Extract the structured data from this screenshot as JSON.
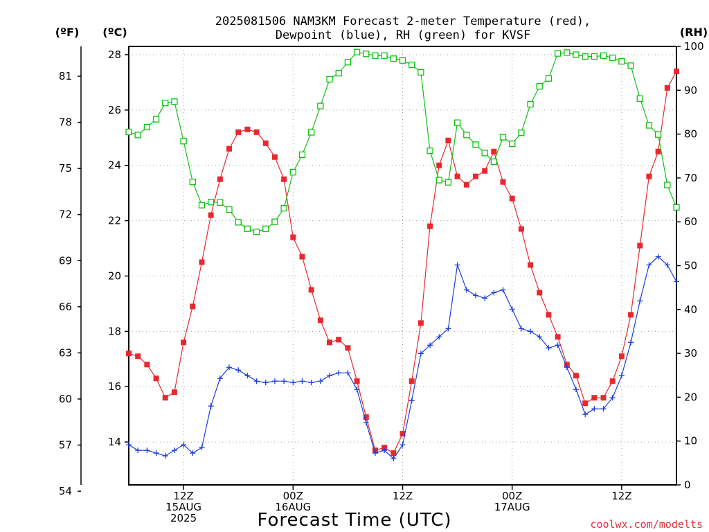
{
  "title_line1": "2025081506 NAM3KM Forecast 2-meter Temperature (red),",
  "title_line2": "Dewpoint (blue), RH (green) for KVSF",
  "unit_f": "(ºF)",
  "unit_c": "(ºC)",
  "unit_rh": "(RH)",
  "xlabel": "Forecast Time (UTC)",
  "credit": "coolwx.com/modelts",
  "colors": {
    "temperature": "#e8282f",
    "dewpoint": "#1a3de0",
    "rh": "#10c010"
  },
  "chart_data": {
    "type": "line",
    "title": "2025081506 NAM3KM Forecast 2-meter Temperature (red), Dewpoint (blue), RH (green) for KVSF",
    "xlabel": "Forecast Time (UTC)",
    "x_start_hour": 6,
    "xlim_hours": [
      6,
      66
    ],
    "x_tick_hours": [
      12,
      24,
      36,
      48,
      60
    ],
    "x_ticks": [
      [
        "12Z",
        "15AUG",
        "2025"
      ],
      [
        "00Z",
        "16AUG"
      ],
      [
        "12Z"
      ],
      [
        "00Z",
        "17AUG"
      ],
      [
        "12Z"
      ]
    ],
    "ylim_c": [
      12.45,
      28.3
    ],
    "yticks_c": [
      14,
      16,
      18,
      20,
      22,
      24,
      26,
      28
    ],
    "yticks_f": [
      54,
      57,
      60,
      63,
      66,
      69,
      72,
      75,
      78,
      81
    ],
    "ylim_rh": [
      0,
      100
    ],
    "yticks_rh": [
      0,
      10,
      20,
      30,
      40,
      50,
      60,
      70,
      80,
      90,
      100
    ],
    "grid": true,
    "series": [
      {
        "name": "2-meter Temperature",
        "units": "ºC",
        "marker": "filled-square",
        "values": [
          17.2,
          17.1,
          16.8,
          16.3,
          15.6,
          15.8,
          17.6,
          18.9,
          20.5,
          22.2,
          23.5,
          24.6,
          25.2,
          25.3,
          25.2,
          24.8,
          24.3,
          23.5,
          21.4,
          20.7,
          19.5,
          18.4,
          17.6,
          17.7,
          17.4,
          16.2,
          14.9,
          13.7,
          13.8,
          13.6,
          14.3,
          16.2,
          18.3,
          21.8,
          24.0,
          24.9,
          23.6,
          23.3,
          23.6,
          23.8,
          24.5,
          23.4,
          22.8,
          21.7,
          20.4,
          19.4,
          18.6,
          17.8,
          16.8,
          16.4,
          15.4,
          15.6,
          15.6,
          16.2,
          17.1,
          18.6,
          21.1,
          23.6,
          24.5,
          26.8,
          27.4
        ]
      },
      {
        "name": "Dewpoint",
        "units": "ºC",
        "marker": "plus",
        "values": [
          13.9,
          13.7,
          13.7,
          13.6,
          13.5,
          13.7,
          13.9,
          13.6,
          13.8,
          15.3,
          16.3,
          16.7,
          16.6,
          16.4,
          16.2,
          16.15,
          16.2,
          16.2,
          16.15,
          16.2,
          16.15,
          16.2,
          16.4,
          16.5,
          16.5,
          15.9,
          14.7,
          13.6,
          13.7,
          13.4,
          13.9,
          15.5,
          17.2,
          17.5,
          17.8,
          18.1,
          20.4,
          19.5,
          19.3,
          19.2,
          19.4,
          19.5,
          18.8,
          18.1,
          18.0,
          17.8,
          17.4,
          17.5,
          16.7,
          15.9,
          15.0,
          15.2,
          15.2,
          15.6,
          16.4,
          17.6,
          19.1,
          20.4,
          20.7,
          20.4,
          19.8
        ]
      },
      {
        "name": "RH",
        "units": "%",
        "marker": "open-square",
        "values": [
          80.5,
          79.8,
          81.6,
          83.4,
          87.1,
          87.4,
          78.4,
          69.1,
          63.8,
          64.5,
          64.4,
          62.8,
          59.9,
          58.4,
          57.7,
          58.4,
          60.0,
          63.1,
          71.3,
          75.3,
          80.4,
          86.4,
          92.5,
          93.9,
          96.4,
          98.7,
          98.3,
          97.9,
          97.9,
          97.2,
          96.8,
          95.8,
          94.1,
          76.2,
          69.5,
          69.0,
          82.6,
          79.8,
          77.6,
          75.7,
          73.7,
          79.3,
          77.8,
          80.3,
          86.8,
          90.9,
          92.7,
          98.4,
          98.6,
          98.1,
          97.7,
          97.7,
          97.9,
          97.4,
          96.6,
          95.6,
          88.1,
          82.0,
          79.9,
          68.4,
          63.3
        ]
      }
    ]
  }
}
